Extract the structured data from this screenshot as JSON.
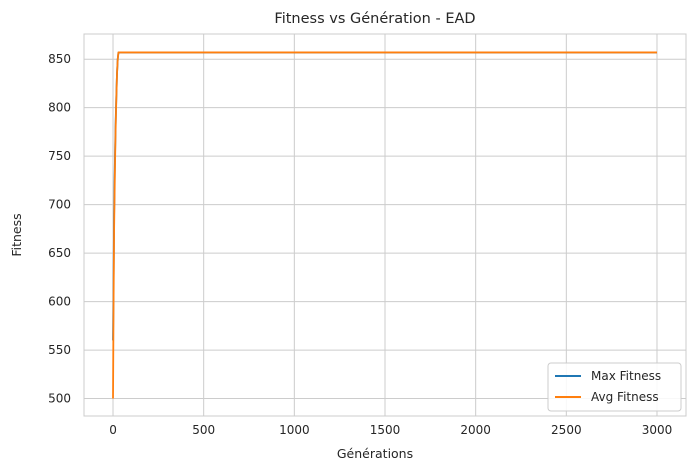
{
  "chart_data": {
    "type": "line",
    "title": "Fitness vs Génération - EAD",
    "xlabel": "Générations",
    "ylabel": "Fitness",
    "xlim": [
      -160,
      3160
    ],
    "ylim": [
      482,
      876
    ],
    "xticks": [
      0,
      500,
      1000,
      1500,
      2000,
      2500,
      3000
    ],
    "yticks": [
      500,
      550,
      600,
      650,
      700,
      750,
      800,
      850
    ],
    "grid": true,
    "legend_position": "lower-right",
    "series": [
      {
        "name": "Max Fitness",
        "color": "#1f77b4",
        "x": [
          0,
          3,
          6,
          10,
          14,
          18,
          22,
          26,
          30,
          3000
        ],
        "y": [
          560,
          620,
          690,
          740,
          780,
          810,
          835,
          850,
          857,
          857
        ]
      },
      {
        "name": "Avg Fitness",
        "color": "#ff7f0e",
        "x": [
          0,
          3,
          6,
          10,
          14,
          18,
          22,
          26,
          30,
          3000
        ],
        "y": [
          500,
          600,
          675,
          730,
          775,
          808,
          835,
          850,
          857,
          857
        ]
      }
    ]
  }
}
